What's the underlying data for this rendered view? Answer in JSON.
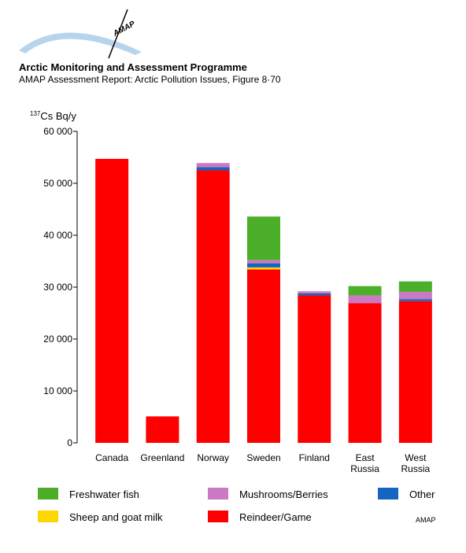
{
  "header": {
    "logo_text": "AMAP",
    "title": "Arctic Monitoring and Assessment Programme",
    "subtitle": "AMAP Assessment Report: Arctic Pollution Issues, Figure 8·70"
  },
  "credit": "AMAP",
  "chart_data": {
    "type": "bar",
    "stacked": true,
    "ylabel_sup": "137",
    "ylabel": "Cs Bq/y",
    "ylim": [
      0,
      60000
    ],
    "yticks": [
      0,
      10000,
      20000,
      30000,
      40000,
      50000,
      60000
    ],
    "ytick_labels": [
      "0",
      "10 000",
      "20 000",
      "30 000",
      "40 000",
      "50 000",
      "60 000"
    ],
    "grid": false,
    "legend_position": "bottom",
    "categories": [
      [
        "Canada"
      ],
      [
        "Greenland"
      ],
      [
        "Norway"
      ],
      [
        "Sweden"
      ],
      [
        "Finland"
      ],
      [
        "East",
        "Russia"
      ],
      [
        "West",
        "Russia"
      ]
    ],
    "series": [
      {
        "name": "Reindeer/Game",
        "color": "#ff0000",
        "values": [
          54700,
          5100,
          52500,
          33400,
          28400,
          26900,
          27300
        ]
      },
      {
        "name": "Sheep and goat milk",
        "color": "#ffd700",
        "values": [
          0,
          0,
          0,
          400,
          0,
          0,
          0
        ]
      },
      {
        "name": "Other",
        "color": "#1565c0",
        "values": [
          0,
          0,
          600,
          800,
          400,
          0,
          400
        ]
      },
      {
        "name": "Mushrooms/Berries",
        "color": "#cc79c4",
        "values": [
          0,
          0,
          800,
          600,
          400,
          1500,
          1400
        ]
      },
      {
        "name": "Freshwater fish",
        "color": "#4caf2a",
        "values": [
          0,
          0,
          0,
          8400,
          0,
          1800,
          2000
        ]
      }
    ],
    "legend": [
      {
        "name": "Freshwater fish",
        "color": "#4caf2a"
      },
      {
        "name": "Mushrooms/Berries",
        "color": "#cc79c4"
      },
      {
        "name": "Other",
        "color": "#1565c0"
      },
      {
        "name": "Sheep and goat milk",
        "color": "#ffd700"
      },
      {
        "name": "Reindeer/Game",
        "color": "#ff0000"
      }
    ]
  }
}
